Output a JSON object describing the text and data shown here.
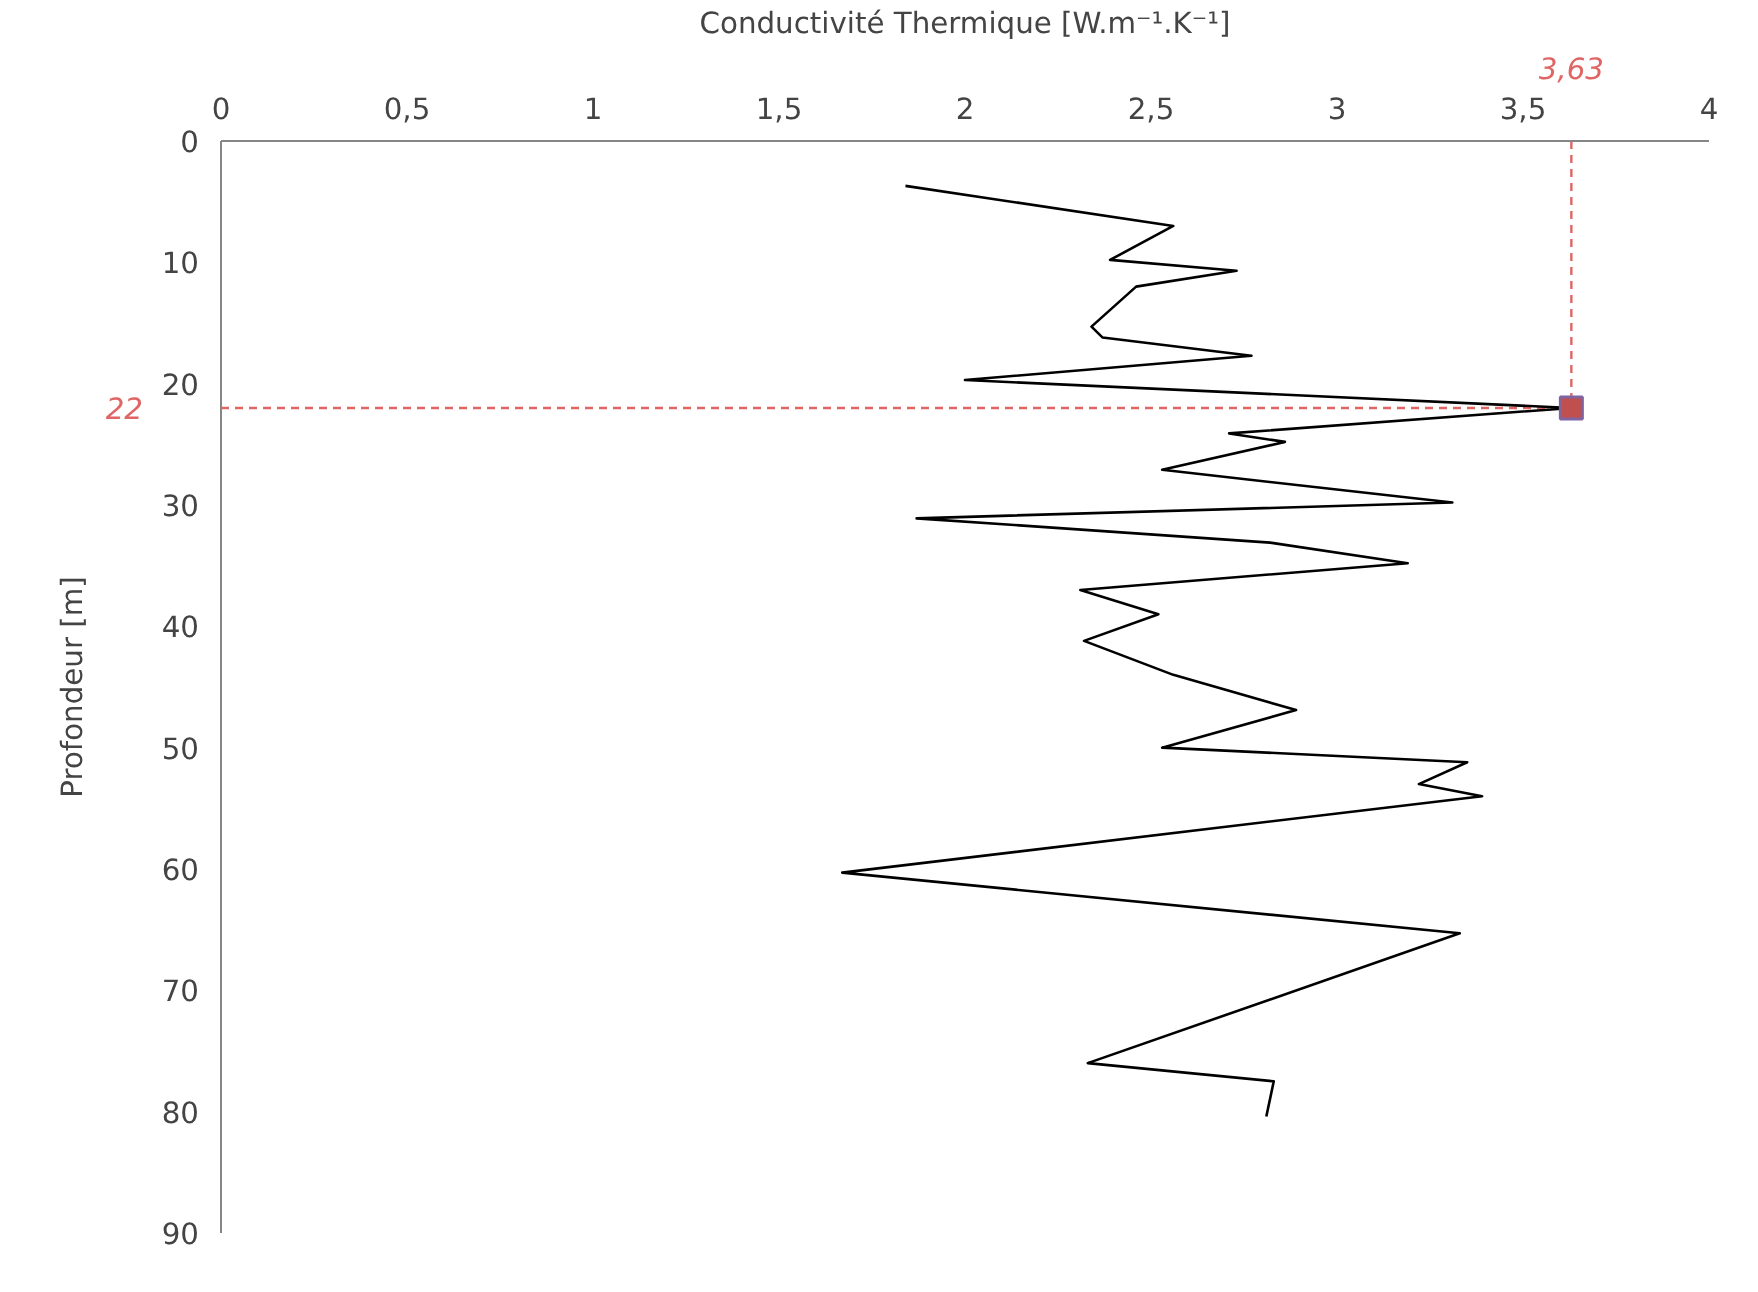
{
  "chart_data": {
    "type": "line",
    "xlabel": "Conductivité Thermique [W.m⁻¹.K⁻¹]",
    "ylabel": "Profondeur [m]",
    "xlim": [
      0,
      4
    ],
    "ylim": [
      90,
      0
    ],
    "xticks": [
      0,
      {
        "value": 0.5,
        "label": "0,5"
      },
      1,
      {
        "value": 1.5,
        "label": "1,5"
      },
      2,
      {
        "value": 2.5,
        "label": "2,5"
      },
      3,
      {
        "value": 3.5,
        "label": "3,5"
      },
      4
    ],
    "yticks": [
      0,
      10,
      20,
      30,
      40,
      50,
      60,
      70,
      80,
      90
    ],
    "grid": false,
    "series": [
      {
        "color": "#000000",
        "marker": "none",
        "line_style": "solid",
        "x": [
          1.84,
          2.56,
          2.39,
          2.73,
          2.46,
          2.34,
          2.37,
          2.77,
          2.0,
          3.63,
          2.71,
          2.86,
          2.53,
          3.31,
          1.87,
          2.82,
          3.19,
          2.31,
          2.52,
          2.32,
          2.56,
          2.89,
          2.53,
          3.35,
          3.22,
          3.39,
          1.67,
          3.33,
          2.33,
          2.83,
          2.81
        ],
        "values": [
          3.7,
          7.0,
          9.8,
          10.7,
          12.0,
          15.3,
          16.2,
          17.7,
          19.7,
          22,
          24.1,
          24.8,
          27.1,
          29.8,
          31.1,
          33.1,
          34.8,
          37.0,
          39.0,
          41.2,
          44.0,
          46.9,
          50.0,
          51.2,
          53.0,
          54.0,
          60.3,
          65.3,
          76.0,
          77.5,
          80.4
        ]
      },
      {
        "type": "scatter",
        "color": "#c0504d",
        "marker": "square",
        "x": [
          3.63
        ],
        "values": [
          22
        ]
      }
    ],
    "ref_lines": [
      {
        "axis": "x",
        "value": 3.63,
        "label": "3,63",
        "color": "#e06666",
        "line_style": "dashed"
      },
      {
        "axis": "y",
        "value": 22,
        "label": "22",
        "color": "#e06666",
        "line_style": "dashed"
      }
    ]
  }
}
